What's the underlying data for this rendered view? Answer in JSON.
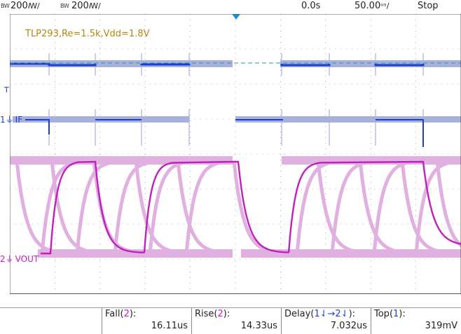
{
  "topbar": {
    "ch1": {
      "bw": "BW",
      "scale": "200",
      "unit": "ꟿ/"
    },
    "ch2": {
      "bw": "BW",
      "scale": "200",
      "unit": "ꟿ/"
    },
    "trigger_pos": "0.0s",
    "timebase": "50.00",
    "timebase_unit": "ᵘˢ/",
    "run_state": "Stop"
  },
  "annotation": "TLP293,Re=1.5k,Vdd=1.8V",
  "markers": {
    "trigger": "T",
    "ch1_num": "1",
    "ch1_label": "IF",
    "ch2_num": "2",
    "ch2_label": "VOUT"
  },
  "measurements": [
    {
      "name": "Fall",
      "channel": "2",
      "suffix": "):",
      "value": "16.11us"
    },
    {
      "name": "Rise",
      "channel": "2",
      "suffix": "):",
      "value": "14.33us"
    },
    {
      "name": "Delay",
      "channel": "1⇃→2⇃",
      "suffix": "):",
      "value": "7.032us"
    },
    {
      "name": "Top",
      "channel": "1",
      "suffix": "):",
      "value": "319mV"
    }
  ],
  "colors": {
    "ch1": "#1a3fd6",
    "ch1_persist": "#a8b0dc",
    "ch2": "#c020c0",
    "ch2_persist": "#e0b0e0",
    "annotation": "#b08a10",
    "grid": "#6a6a6a",
    "trigger_level": "#2a9a9a"
  }
}
